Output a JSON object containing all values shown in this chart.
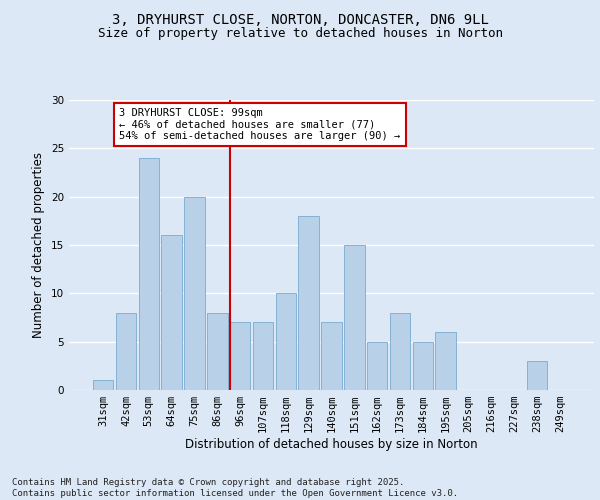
{
  "title_line1": "3, DRYHURST CLOSE, NORTON, DONCASTER, DN6 9LL",
  "title_line2": "Size of property relative to detached houses in Norton",
  "xlabel": "Distribution of detached houses by size in Norton",
  "ylabel": "Number of detached properties",
  "categories": [
    "31sqm",
    "42sqm",
    "53sqm",
    "64sqm",
    "75sqm",
    "86sqm",
    "96sqm",
    "107sqm",
    "118sqm",
    "129sqm",
    "140sqm",
    "151sqm",
    "162sqm",
    "173sqm",
    "184sqm",
    "195sqm",
    "205sqm",
    "216sqm",
    "227sqm",
    "238sqm",
    "249sqm"
  ],
  "values": [
    1,
    8,
    24,
    16,
    20,
    8,
    7,
    7,
    10,
    18,
    7,
    15,
    5,
    8,
    5,
    6,
    0,
    0,
    0,
    3,
    0
  ],
  "bar_color": "#b8d0e8",
  "bar_edge_color": "#7aaad0",
  "vline_index": 5.55,
  "annotation_text": "3 DRYHURST CLOSE: 99sqm\n← 46% of detached houses are smaller (77)\n54% of semi-detached houses are larger (90) →",
  "annotation_box_color": "#ffffff",
  "annotation_box_edge_color": "#cc0000",
  "vline_color": "#cc0000",
  "ylim": [
    0,
    30
  ],
  "yticks": [
    0,
    5,
    10,
    15,
    20,
    25,
    30
  ],
  "background_color": "#dce8f5",
  "grid_color": "#ffffff",
  "footer_text": "Contains HM Land Registry data © Crown copyright and database right 2025.\nContains public sector information licensed under the Open Government Licence v3.0.",
  "title_fontsize": 10,
  "subtitle_fontsize": 9,
  "axis_label_fontsize": 8.5,
  "tick_fontsize": 7.5,
  "annotation_fontsize": 7.5,
  "footer_fontsize": 6.5
}
